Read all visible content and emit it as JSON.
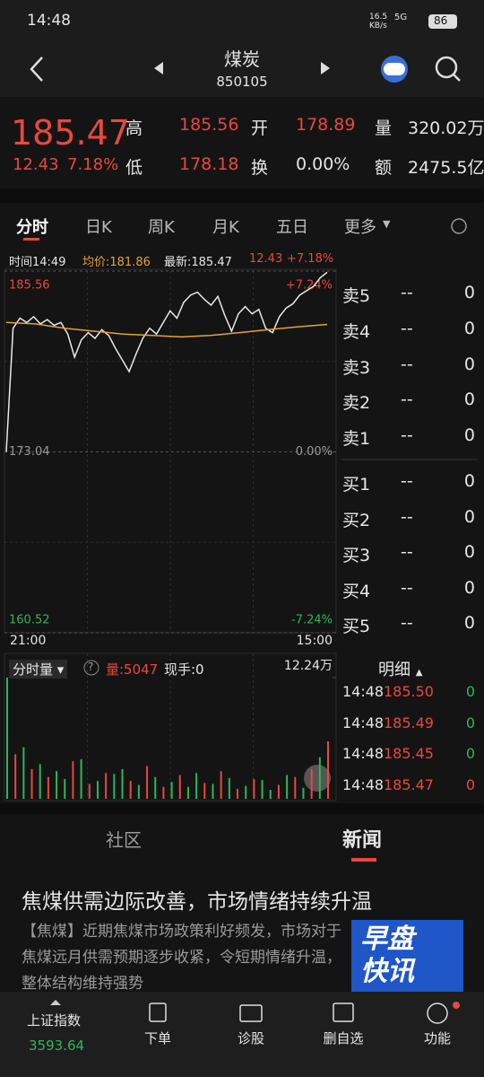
{
  "status_bar": {
    "time": "14:48",
    "speed": "16.5",
    "speed_unit": "KB/s",
    "network": "5G",
    "battery": "86"
  },
  "header": {
    "title": "煤炭",
    "code": "850105"
  },
  "quote": {
    "price": "185.47",
    "change": "12.43",
    "change_pct": "7.18%",
    "fields": [
      {
        "label": "高",
        "value": "185.56"
      },
      {
        "label": "开",
        "value": "178.89"
      },
      {
        "label": "量",
        "value": "320.02万"
      },
      {
        "label": "低",
        "value": "178.18"
      },
      {
        "label": "换",
        "value": "0.00%"
      },
      {
        "label": "额",
        "value": "2475.5亿"
      }
    ]
  },
  "tabs": [
    "分时",
    "日K",
    "周K",
    "月K",
    "五日",
    "更多"
  ],
  "info_line": {
    "time": "时间14:49",
    "avg": "均价:181.86",
    "latest": "最新:185.47",
    "change": "12.43",
    "pct": "+7.18%"
  },
  "chart_data": {
    "type": "line",
    "ylim": [
      160.52,
      185.56
    ],
    "yticks": [
      185.56,
      173.04,
      160.52
    ],
    "y2lim": [
      -7.24,
      7.24
    ],
    "y2ticks": [
      {
        "value": 7.24,
        "label": "+7.24%"
      },
      {
        "value": 0,
        "label": "0.00%"
      },
      {
        "value": -7.24,
        "label": "-7.24%"
      }
    ],
    "xlabels": [
      "21:00",
      "15:00"
    ],
    "series": [
      {
        "color": "#e8e8e8",
        "values": [
          173.04,
          181.6,
          182.3,
          182.0,
          182.4,
          181.9,
          182.2,
          181.8,
          182.0,
          181.2,
          179.6,
          180.8,
          181.3,
          180.9,
          181.5,
          181.1,
          180.2,
          179.4,
          178.6,
          179.8,
          180.9,
          181.6,
          181.2,
          182.0,
          182.8,
          182.3,
          183.4,
          183.9,
          184.1,
          183.6,
          183.2,
          183.8,
          182.5,
          181.4,
          182.6,
          183.1,
          182.6,
          182.9,
          181.6,
          181.3,
          182.4,
          183.0,
          183.3,
          183.9,
          184.2,
          184.5,
          185.1,
          185.47
        ]
      },
      {
        "color": "#e5a23a",
        "values": [
          182.0,
          181.9,
          181.6,
          181.4,
          181.2,
          181.1,
          181.0,
          181.1,
          181.3,
          181.5,
          181.7,
          181.86
        ]
      }
    ]
  },
  "order_book": {
    "asks": [
      {
        "label": "卖5",
        "price": "--",
        "volume": "0"
      },
      {
        "label": "卖4",
        "price": "--",
        "volume": "0"
      },
      {
        "label": "卖3",
        "price": "--",
        "volume": "0"
      },
      {
        "label": "卖2",
        "price": "--",
        "volume": "0"
      },
      {
        "label": "卖1",
        "price": "--",
        "volume": "0"
      }
    ],
    "bids": [
      {
        "label": "买1",
        "price": "--",
        "volume": "0"
      },
      {
        "label": "买2",
        "price": "--",
        "volume": "0"
      },
      {
        "label": "买3",
        "price": "--",
        "volume": "0"
      },
      {
        "label": "买4",
        "price": "--",
        "volume": "0"
      },
      {
        "label": "买5",
        "price": "--",
        "volume": "0"
      }
    ]
  },
  "volume_panel": {
    "selector": "分时量",
    "help": "?",
    "volume": "量:5047",
    "current": "现手:0"
  },
  "volume_chart": {
    "type": "bar",
    "ylim": [
      0,
      122400
    ],
    "yticks": [
      {
        "value": 122400,
        "label": "12.24万"
      }
    ],
    "series": [
      {
        "color": "#e8483f",
        "values": [
          null,
          45000,
          null,
          30000,
          null,
          22000,
          null,
          null,
          38000,
          null,
          15000,
          null,
          26000,
          null,
          null,
          18000,
          null,
          33000,
          null,
          12000,
          null,
          24000,
          null,
          null,
          16000,
          null,
          28000,
          null,
          10000,
          null,
          20000,
          null,
          null,
          14000,
          null,
          22000,
          null,
          30000,
          null,
          58000
        ]
      },
      {
        "color": "#2fb55a",
        "values": [
          122400,
          null,
          52000,
          null,
          35000,
          null,
          28000,
          20000,
          null,
          40000,
          null,
          18000,
          null,
          25000,
          30000,
          null,
          14000,
          null,
          22000,
          null,
          17000,
          null,
          12000,
          26000,
          null,
          15000,
          null,
          21000,
          null,
          13000,
          null,
          19000,
          9000,
          null,
          24000,
          null,
          11000,
          null,
          42000,
          null
        ]
      }
    ]
  },
  "ticks_panel": {
    "title": "明细",
    "rows": [
      {
        "time": "14:48",
        "price": "185.50",
        "volume": "0",
        "volume_color": "#2fb55a"
      },
      {
        "time": "14:48",
        "price": "185.49",
        "volume": "0",
        "volume_color": "#2fb55a"
      },
      {
        "time": "14:48",
        "price": "185.45",
        "volume": "0",
        "volume_color": "#2fb55a"
      },
      {
        "time": "14:48",
        "price": "185.47",
        "volume": "0",
        "volume_color": "#e8483f"
      }
    ]
  },
  "news_tabs": [
    "社区",
    "新闻"
  ],
  "news": {
    "title": "焦煤供需边际改善，市场情绪持续升温",
    "body": "【焦煤】近期焦煤市场政策利好频发，市场对于焦煤远月供需预期逐步收紧，令短期情绪升温，整体结构维持强势",
    "image_text": [
      "早盘",
      "快讯"
    ]
  },
  "bottom_nav": {
    "index_name": "上证指数",
    "index_value": "3593.64",
    "items": [
      "下单",
      "诊股",
      "删自选",
      "功能"
    ]
  }
}
